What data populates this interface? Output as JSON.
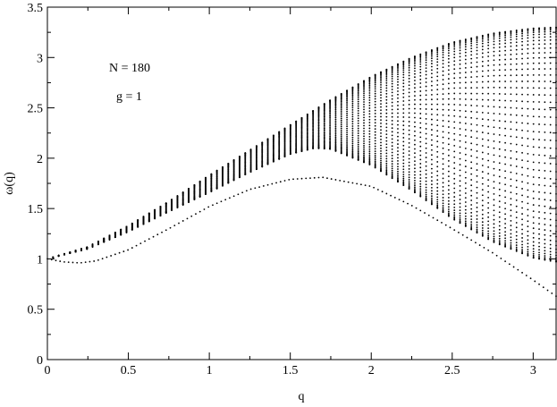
{
  "chart_data": {
    "type": "scatter",
    "title": "",
    "xlabel": "q",
    "ylabel": "ω(q)",
    "xlim": [
      0,
      3.14159
    ],
    "ylim": [
      0,
      3.5
    ],
    "xticks": [
      0,
      0.5,
      1,
      1.5,
      2,
      2.5,
      3
    ],
    "xtick_labels": [
      "0",
      "0.5",
      "1",
      "1.5",
      "2",
      "2.5",
      "3"
    ],
    "yticks": [
      0,
      0.5,
      1,
      1.5,
      2,
      2.5,
      3,
      3.5
    ],
    "ytick_labels": [
      "0",
      "0.5",
      "1",
      "1.5",
      "2",
      "2.5",
      "3",
      "3.5"
    ],
    "grid": false,
    "annotations": [
      "N = 180",
      "g = 1"
    ],
    "point_color": "#000000",
    "series": [
      {
        "role": "band-lower-edge",
        "x": [
          0,
          0.25,
          0.5,
          0.75,
          1.0,
          1.25,
          1.5,
          1.65,
          1.75,
          2.0,
          2.25,
          2.5,
          2.75,
          3.0,
          3.14
        ],
        "y": [
          1.0,
          1.1,
          1.27,
          1.47,
          1.66,
          1.86,
          2.04,
          2.1,
          2.09,
          1.93,
          1.68,
          1.4,
          1.17,
          1.01,
          0.97
        ]
      },
      {
        "role": "band-upper-edge",
        "x": [
          0,
          0.25,
          0.5,
          0.75,
          1.0,
          1.25,
          1.5,
          1.75,
          2.0,
          2.25,
          2.5,
          2.75,
          3.0,
          3.14
        ],
        "y": [
          1.0,
          1.12,
          1.33,
          1.57,
          1.83,
          2.08,
          2.33,
          2.58,
          2.81,
          3.0,
          3.15,
          3.24,
          3.29,
          3.3
        ]
      },
      {
        "role": "lower-branch",
        "x": [
          0,
          0.1,
          0.2,
          0.3,
          0.5,
          0.75,
          1.0,
          1.25,
          1.5,
          1.7,
          2.0,
          2.25,
          2.5,
          2.75,
          3.0,
          3.14
        ],
        "y": [
          1.0,
          0.97,
          0.96,
          0.98,
          1.09,
          1.3,
          1.52,
          1.69,
          1.79,
          1.81,
          1.72,
          1.53,
          1.3,
          1.06,
          0.79,
          0.63
        ]
      }
    ]
  }
}
